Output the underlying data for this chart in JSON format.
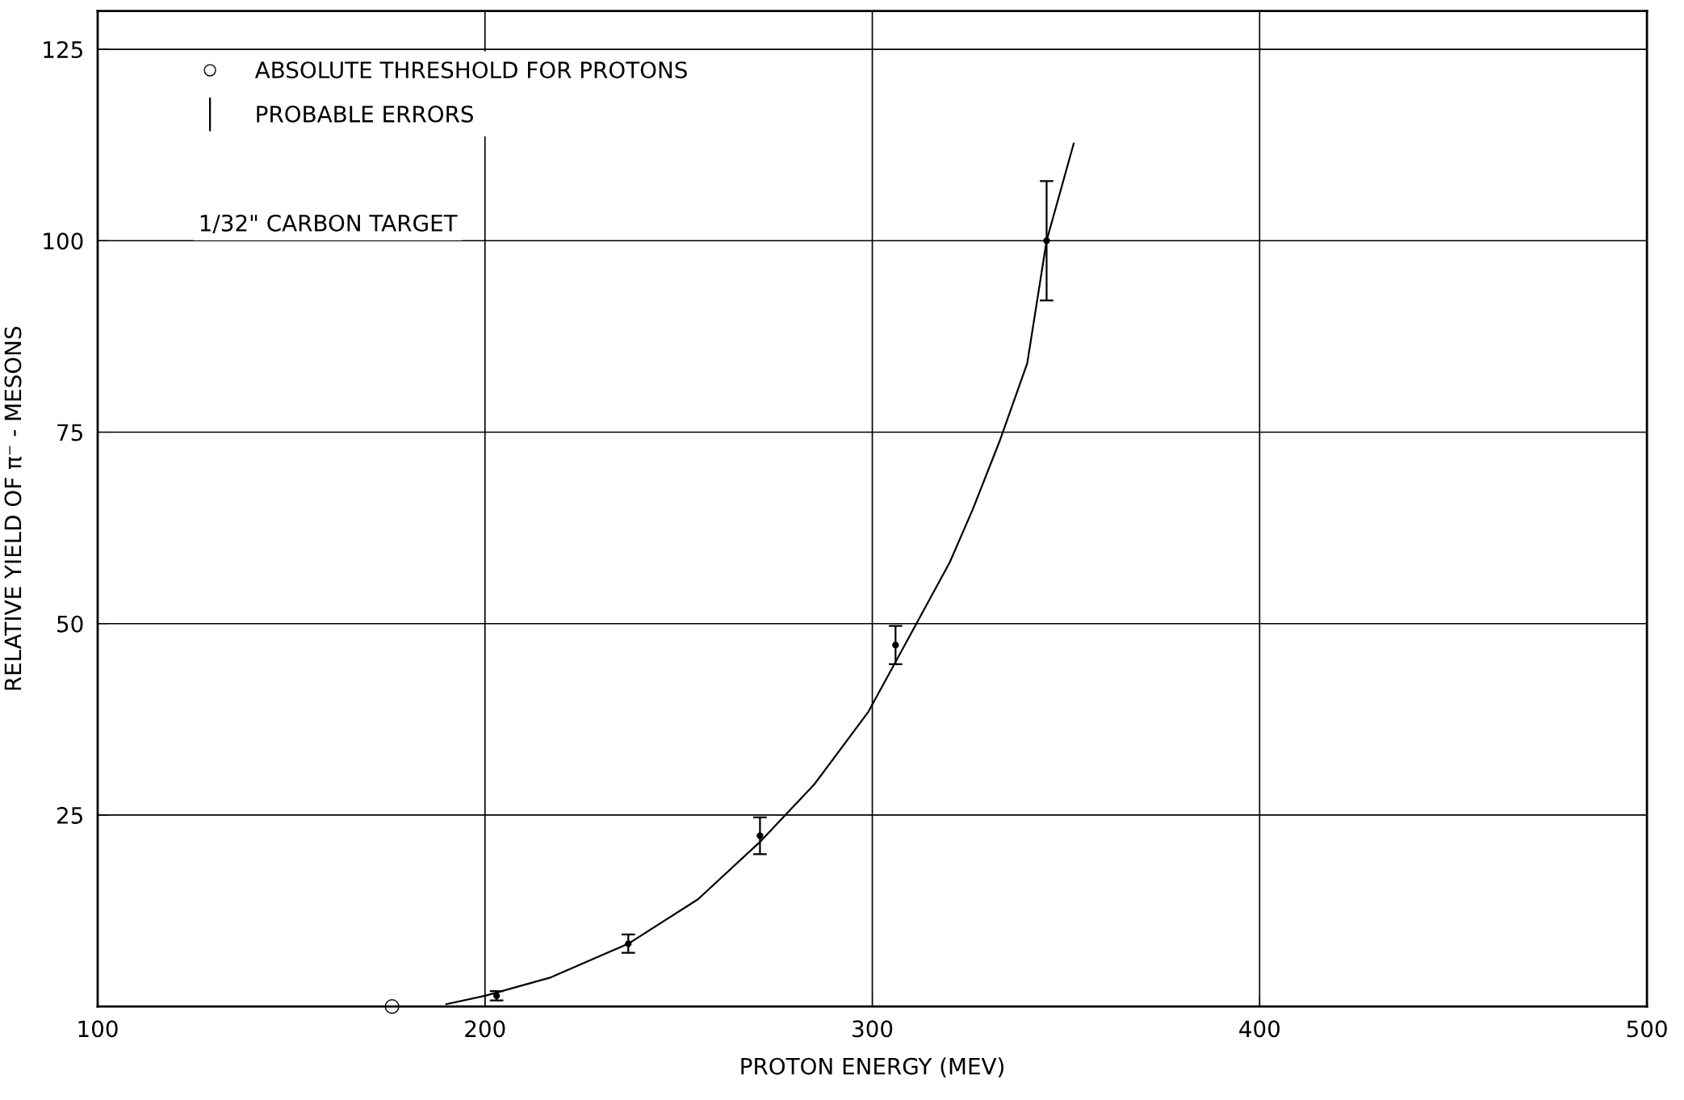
{
  "chart_data": {
    "type": "scatter",
    "xlabel": "PROTON ENERGY (MEV)",
    "ylabel": "RELATIVE YIELD OF π⁻ - MESONS",
    "xlim": [
      100,
      500
    ],
    "xticks": [
      100,
      200,
      300,
      400,
      500
    ],
    "ylim": [
      0,
      130
    ],
    "yticks": [
      25,
      50,
      75,
      100,
      125
    ],
    "grid": true,
    "legend": "top left",
    "series": [
      {
        "name": "ABSOLUTE THRESHOLD FOR PROTONS",
        "marker": "circle",
        "color": "#000000",
        "x": [
          176
        ],
        "values": [
          0
        ]
      },
      {
        "name": "PROBABLE ERRORS",
        "marker": "circle",
        "color": "#000000",
        "x": [
          203,
          237,
          271,
          306,
          345
        ],
        "values": [
          1.4,
          8.2,
          22.3,
          47.2,
          100
        ],
        "errors": [
          0.6,
          1.2,
          2.4,
          2.5,
          7.8
        ]
      },
      {
        "type": "line",
        "marker": "none",
        "color": "#000000",
        "x": [
          190,
          200,
          217,
          237,
          255,
          271,
          285,
          299,
          306,
          313,
          320,
          326,
          333,
          340,
          345,
          352
        ],
        "values": [
          0.3,
          1.4,
          3.8,
          8.2,
          14,
          21.5,
          29,
          38.5,
          45,
          51.5,
          58,
          65,
          74,
          84,
          100,
          112.7
        ]
      }
    ],
    "annotations": [
      "1/32\" CARBON TARGET"
    ]
  }
}
